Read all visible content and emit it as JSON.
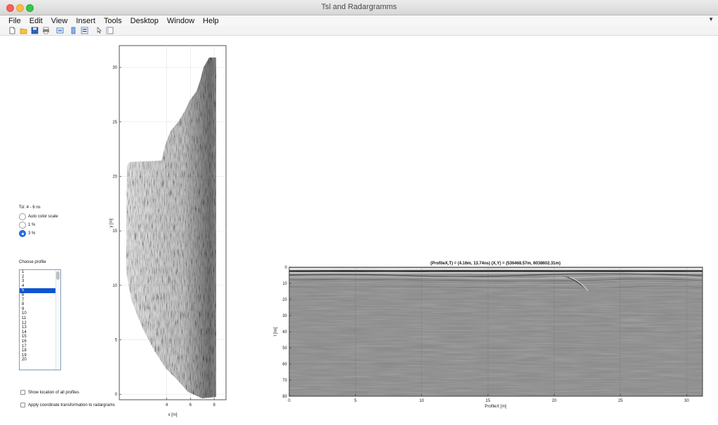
{
  "window": {
    "title": "Tsl and Radargramms"
  },
  "menu": [
    "File",
    "Edit",
    "View",
    "Insert",
    "Tools",
    "Desktop",
    "Window",
    "Help"
  ],
  "toolbar_icons": [
    "new-file-icon",
    "open-folder-icon",
    "save-icon",
    "print-icon",
    "print-preview-icon",
    "colorbar-icon",
    "legend-icon",
    "pointer-icon",
    "property-editor-icon"
  ],
  "tsl_panel": {
    "heading": "Tsl: 4 - 6 ns",
    "options": [
      {
        "label": "Auto color scale",
        "selected": false
      },
      {
        "label": "1 %",
        "selected": false
      },
      {
        "label": "3 %",
        "selected": true
      }
    ]
  },
  "profile_panel": {
    "heading": "Choose profile",
    "items": [
      "1",
      "2",
      "3",
      "4",
      "5",
      "6",
      "7",
      "8",
      "9",
      "10",
      "11",
      "12",
      "13",
      "14",
      "15",
      "16",
      "17",
      "18",
      "19",
      "20"
    ],
    "selected": "5"
  },
  "checkboxes": [
    {
      "label": "Show location of all profiles",
      "checked": false
    },
    {
      "label": "Apply coordinate transformation to radargrams",
      "checked": false
    }
  ],
  "map_plot": {
    "xlabel": "x [m]",
    "ylabel": "y [m]",
    "x_ticks": [
      "4",
      "6",
      "8"
    ],
    "y_ticks": [
      "0",
      "5",
      "10",
      "15",
      "20",
      "25",
      "30"
    ],
    "xlim": [
      0,
      9
    ],
    "ylim": [
      -0.5,
      32
    ]
  },
  "radargram": {
    "title": "(ProfileX,T) = (4.16m, 13.74ns)   (X,Y) = (536468.57m, 6038602.31m)",
    "xlabel": "ProfileX [m]",
    "ylabel": "t [ns]",
    "x_ticks": [
      "0",
      "5",
      "10",
      "15",
      "20",
      "25",
      "30"
    ],
    "y_ticks": [
      "0",
      "10",
      "20",
      "30",
      "40",
      "50",
      "60",
      "70",
      "80"
    ],
    "xlim": [
      0,
      31.2
    ],
    "ylim": [
      0,
      80
    ]
  }
}
